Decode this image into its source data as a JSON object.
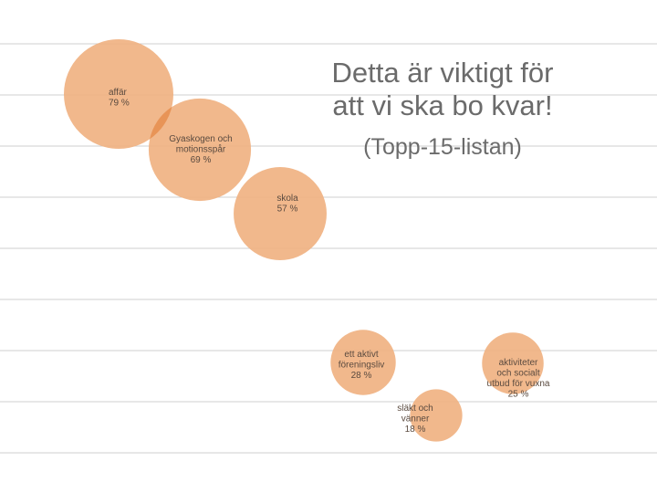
{
  "title_lines": [
    "Detta är viktigt för",
    "att vi ska bo kvar!"
  ],
  "subtitle": "(Topp-15-listan)",
  "colors": {
    "bubble": "#f0b07f",
    "overlap": "#e89457",
    "gridline": "#cfcfcf",
    "title": "#6b6b6b"
  },
  "chart_data": {
    "type": "bubble",
    "title": "Detta är viktigt för att vi ska bo kvar! (Topp-15-listan)",
    "series": [
      {
        "name": "affär",
        "value_label": "79 %",
        "value": 79
      },
      {
        "name": "Gyaskogen och motionsspår",
        "value_label": "69 %",
        "value": 69
      },
      {
        "name": "skola",
        "value_label": "57 %",
        "value": 57
      },
      {
        "name": "ett aktivt föreningsliv",
        "value_label": "28 %",
        "value": 28
      },
      {
        "name": "aktiviteter och socialt utbud för vuxna",
        "value_label": "25 %",
        "value": 25
      },
      {
        "name": "släkt och vänner",
        "value_label": "18 %",
        "value": 18
      }
    ],
    "grid": true,
    "legend": "none"
  }
}
